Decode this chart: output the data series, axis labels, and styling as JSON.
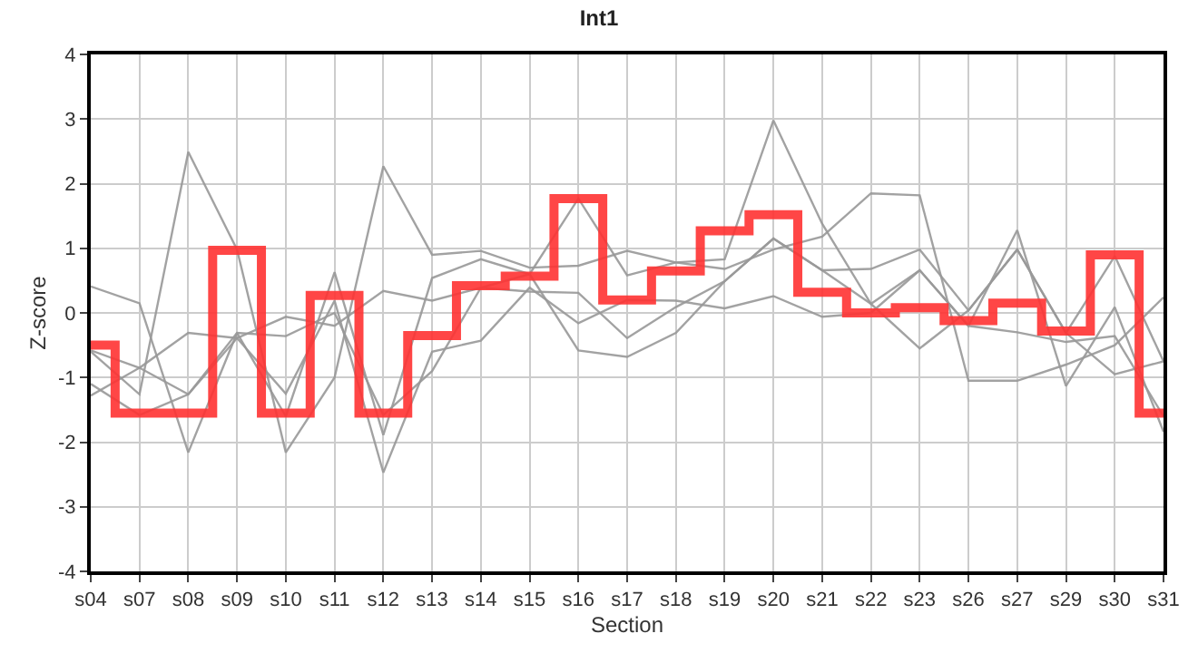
{
  "chart_data": {
    "type": "line",
    "title": "Int1",
    "xlabel": "Section",
    "ylabel": "Z-score",
    "categories": [
      "s04",
      "s07",
      "s08",
      "s09",
      "s10",
      "s11",
      "s12",
      "s13",
      "s14",
      "s15",
      "s16",
      "s17",
      "s18",
      "s19",
      "s20",
      "s21",
      "s22",
      "s23",
      "s26",
      "s27",
      "s29",
      "s30",
      "s31"
    ],
    "ylim": [
      -4,
      4
    ],
    "yticks": [
      -4,
      -3,
      -2,
      -1,
      0,
      1,
      2,
      3,
      4
    ],
    "grid": true,
    "legend": false,
    "marker": "none",
    "line_style": "solid",
    "series": [
      {
        "color": "#999999",
        "values": [
          0.41,
          0.15,
          -2.16,
          -0.31,
          -1.6,
          0.63,
          -1.89,
          0.54,
          0.83,
          0.6,
          1.77,
          0.58,
          0.78,
          0.83,
          2.98,
          1.38,
          0.14,
          0.66,
          -0.2,
          1.28,
          -1.13,
          0.09,
          -1.84
        ]
      },
      {
        "color": "#999999",
        "values": [
          -0.58,
          -0.85,
          -0.31,
          -0.39,
          -0.06,
          -0.2,
          0.34,
          0.19,
          0.39,
          0.33,
          0.31,
          -0.39,
          0.09,
          0.49,
          1.15,
          0.66,
          0.14,
          -0.55,
          0.04,
          0.98,
          -0.31,
          0.88,
          -0.75
        ]
      },
      {
        "color": "#999999",
        "values": [
          -0.6,
          -1.26,
          2.49,
          0.98,
          -2.16,
          -1.0,
          2.27,
          0.9,
          0.96,
          0.7,
          0.73,
          0.96,
          0.78,
          0.68,
          0.98,
          1.18,
          1.85,
          1.82,
          -1.05,
          -1.05,
          -0.8,
          -0.5,
          0.24
        ]
      },
      {
        "color": "#999999",
        "values": [
          -1.1,
          -1.58,
          -1.26,
          -0.39,
          -1.25,
          0.19,
          -2.47,
          -0.6,
          -0.43,
          0.39,
          -0.16,
          0.2,
          0.19,
          0.07,
          0.26,
          -0.06,
          0.0,
          0.66,
          -0.2,
          -0.3,
          -0.45,
          -0.36,
          -1.6
        ]
      },
      {
        "color": "#999999",
        "values": [
          -1.28,
          -0.85,
          -1.26,
          -0.31,
          -0.36,
          0.0,
          -1.58,
          -0.9,
          0.39,
          0.6,
          -0.58,
          -0.68,
          -0.31,
          0.49,
          1.15,
          0.66,
          0.68,
          0.98,
          0.04,
          0.98,
          -0.31,
          -0.95,
          -0.75
        ]
      },
      {
        "type": "step",
        "color": "#ff3333",
        "values": [
          -0.5,
          -1.55,
          -1.55,
          0.97,
          -1.55,
          0.27,
          -1.55,
          -0.35,
          0.42,
          0.57,
          1.77,
          0.2,
          0.65,
          1.27,
          1.52,
          0.32,
          0.0,
          0.08,
          -0.12,
          0.15,
          -0.28,
          0.9,
          -1.55
        ]
      }
    ]
  }
}
